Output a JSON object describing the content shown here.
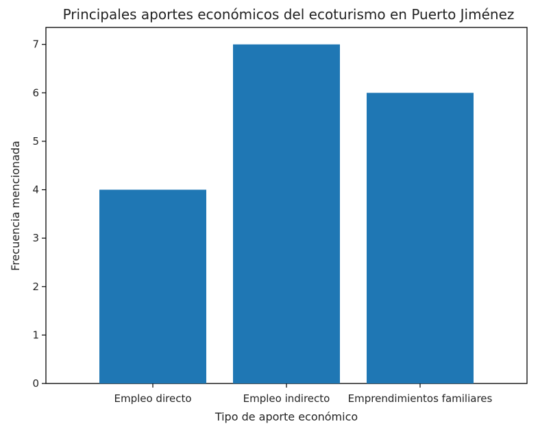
{
  "chart_data": {
    "type": "bar",
    "title": "Principales aportes económicos del ecoturismo en Puerto Jiménez",
    "xlabel": "Tipo de aporte económico",
    "ylabel": "Frecuencia mencionada",
    "categories": [
      "Empleo directo",
      "Empleo indirecto",
      "Emprendimientos familiares"
    ],
    "values": [
      4,
      7,
      6
    ],
    "ylim": [
      0,
      7.35
    ],
    "yticks": [
      0,
      1,
      2,
      3,
      4,
      5,
      6,
      7
    ],
    "grid": false,
    "legend": "none",
    "bar_color": "#1f77b4"
  }
}
